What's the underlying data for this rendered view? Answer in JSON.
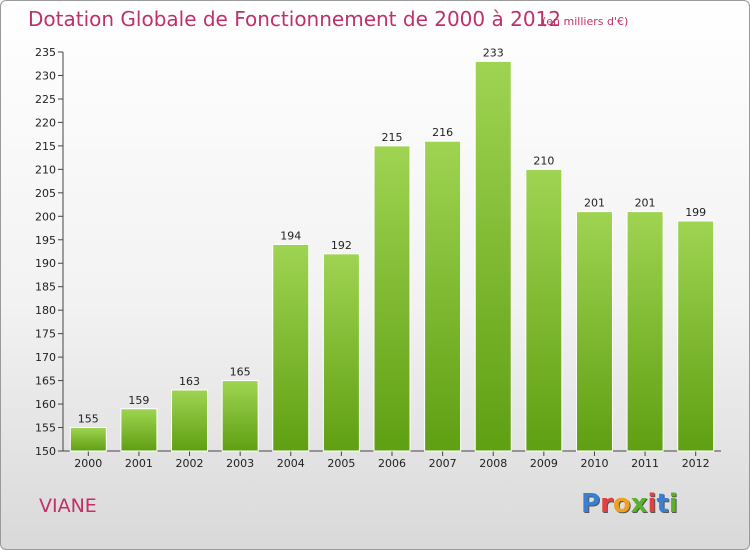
{
  "header": {
    "title": "Dotation Globale de Fonctionnement de 2000 à 2012",
    "subtitle": "(en milliers d'€)"
  },
  "commune": "VIANE",
  "logo": {
    "text": "Proxiti",
    "letter_colors": [
      "#3a7fd0",
      "#e04040",
      "#f0a020",
      "#5bb030",
      "#e04040",
      "#3a7fd0",
      "#5bb030"
    ]
  },
  "colors": {
    "accent": "#c0306a",
    "bar_light": "#9fd452",
    "bar_dark": "#5f9f12"
  },
  "chart_data": {
    "type": "bar",
    "title": "Dotation Globale de Fonctionnement de 2000 à 2012",
    "subtitle": "(en milliers d'€)",
    "categories": [
      "2000",
      "2001",
      "2002",
      "2003",
      "2004",
      "2005",
      "2006",
      "2007",
      "2008",
      "2009",
      "2010",
      "2011",
      "2012"
    ],
    "values": [
      155,
      159,
      163,
      165,
      194,
      192,
      215,
      216,
      233,
      210,
      201,
      201,
      199
    ],
    "ylim": [
      150,
      235
    ],
    "yticks": [
      150,
      155,
      160,
      165,
      170,
      175,
      180,
      185,
      190,
      195,
      200,
      205,
      210,
      215,
      220,
      225,
      230,
      235
    ],
    "xlabel": "",
    "ylabel": "",
    "grid": false
  }
}
